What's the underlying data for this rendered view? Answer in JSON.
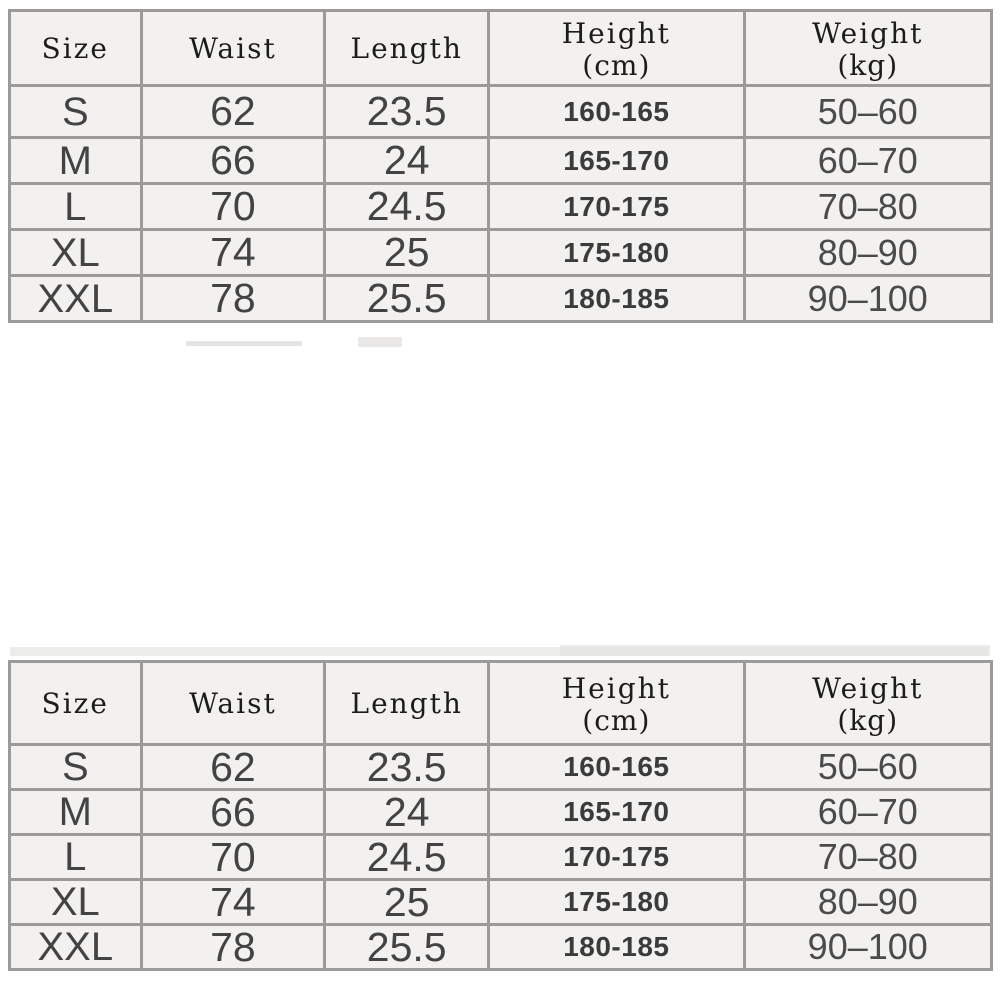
{
  "chart_data": {
    "type": "table",
    "title": "",
    "description": "Garment size chart, rendered twice (top and bottom copies)",
    "instances": [
      "top",
      "bottom"
    ],
    "columns": [
      {
        "key": "size",
        "label": "Size"
      },
      {
        "key": "waist",
        "label": "Waist"
      },
      {
        "key": "length",
        "label": "Length"
      },
      {
        "key": "height",
        "label": "Height",
        "unit": "(cm)"
      },
      {
        "key": "weight",
        "label": "Weight",
        "unit": "(kg)"
      }
    ],
    "rows": [
      {
        "size": "S",
        "waist": "62",
        "length": "23.5",
        "height": "160-165",
        "weight": "50–60"
      },
      {
        "size": "M",
        "waist": "66",
        "length": "24",
        "height": "165-170",
        "weight": "60–70"
      },
      {
        "size": "L",
        "waist": "70",
        "length": "24.5",
        "height": "170-175",
        "weight": "70–80"
      },
      {
        "size": "XL",
        "waist": "74",
        "length": "25",
        "height": "175-180",
        "weight": "80–90"
      },
      {
        "size": "XXL",
        "waist": "78",
        "length": "25.5",
        "height": "180-185",
        "weight": "90–100"
      }
    ]
  },
  "colors": {
    "page_background": "#ffffff",
    "table_background": "#f2f1ef",
    "grid_line": "#9b9a98",
    "header_text": "#1c1c1a",
    "data_text": "#434343"
  }
}
